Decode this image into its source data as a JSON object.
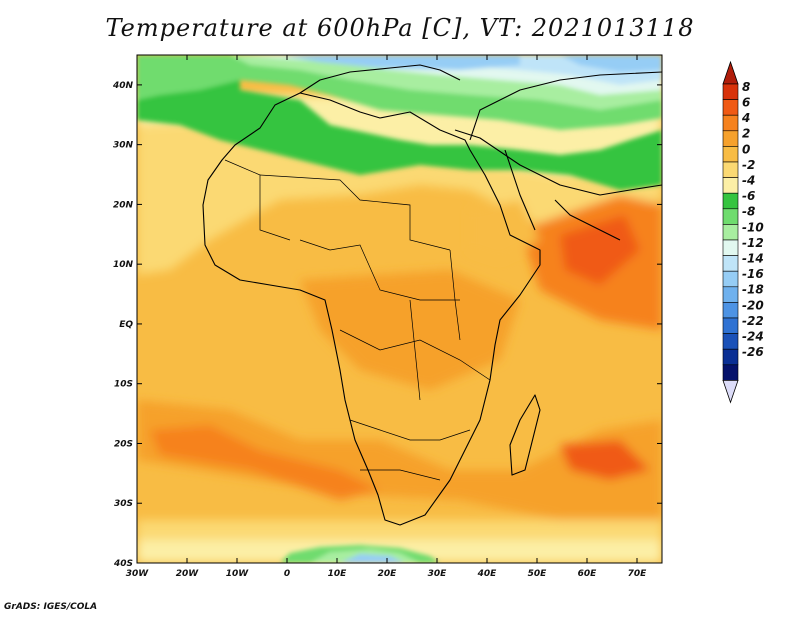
{
  "title": "Temperature at 600hPa [C], VT: 2021013118",
  "credit": "GrADS: IGES/COLA",
  "map": {
    "lon_range": [
      -30,
      75
    ],
    "lat_range": [
      -40,
      45
    ],
    "lat_labels": [
      "40N",
      "30N",
      "20N",
      "10N",
      "EQ",
      "10S",
      "20S",
      "30S",
      "40S"
    ],
    "lat_values": [
      40,
      30,
      20,
      10,
      0,
      -10,
      -20,
      -30,
      -40
    ],
    "lon_labels": [
      "30W",
      "20W",
      "10W",
      "0",
      "10E",
      "20E",
      "30E",
      "40E",
      "50E",
      "60E",
      "70E"
    ],
    "lon_values": [
      -30,
      -20,
      -10,
      0,
      10,
      20,
      30,
      40,
      50,
      60,
      70
    ]
  },
  "colorbar": {
    "labels": [
      "8",
      "6",
      "4",
      "2",
      "0",
      "-2",
      "-4",
      "-6",
      "-8",
      "-10",
      "-12",
      "-14",
      "-16",
      "-18",
      "-20",
      "-22",
      "-24",
      "-26"
    ],
    "colors": [
      "#d8320a",
      "#f05a14",
      "#f6821e",
      "#f6a12c",
      "#f8bc44",
      "#fbd973",
      "#fcefa6",
      "#35c43f",
      "#6fdc6e",
      "#a8eea0",
      "#e2f8f0",
      "#bfe4f8",
      "#96cdf5",
      "#6fb1ee",
      "#4d93e4",
      "#2f72d3",
      "#1a51b8",
      "#0a2f94",
      "#05126b"
    ],
    "overflow_high": "#b01d0a",
    "overflow_low": "#dcdcf8"
  }
}
